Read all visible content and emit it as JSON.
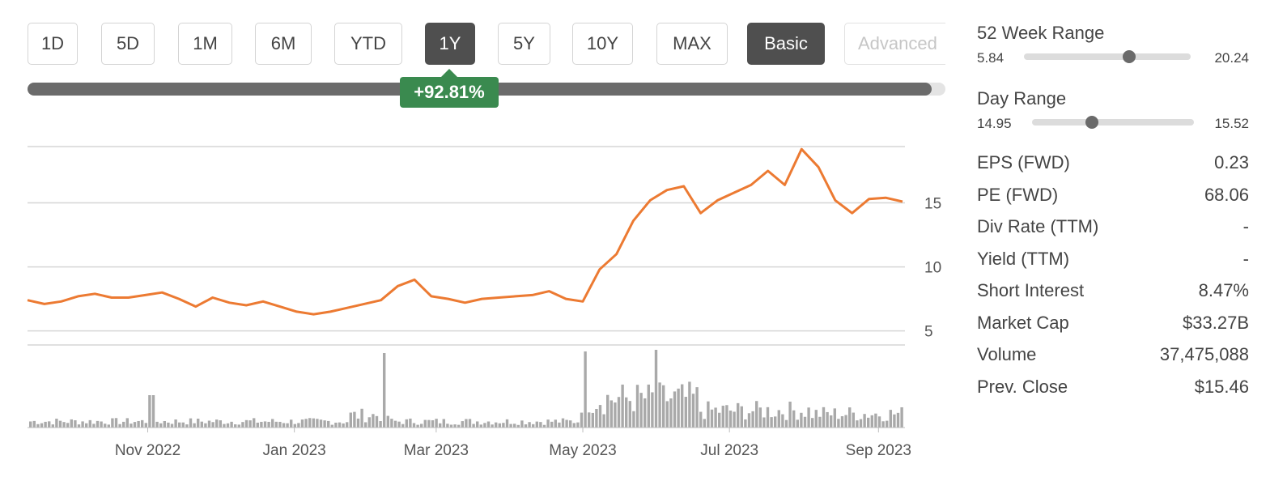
{
  "periods": [
    {
      "label": "1D",
      "state": "normal"
    },
    {
      "label": "5D",
      "state": "normal"
    },
    {
      "label": "1M",
      "state": "normal"
    },
    {
      "label": "6M",
      "state": "normal"
    },
    {
      "label": "YTD",
      "state": "normal"
    },
    {
      "label": "1Y",
      "state": "active"
    },
    {
      "label": "5Y",
      "state": "normal"
    },
    {
      "label": "10Y",
      "state": "normal"
    },
    {
      "label": "MAX",
      "state": "normal"
    },
    {
      "label": "Basic",
      "state": "active"
    },
    {
      "label": "Advanced",
      "state": "disabled"
    }
  ],
  "period_progress": 0.985,
  "change_badge": "+92.81%",
  "stats": {
    "week52": {
      "title": "52 Week Range",
      "low": "5.84",
      "high": "20.24",
      "position": 0.63
    },
    "day": {
      "title": "Day Range",
      "low": "14.95",
      "high": "15.52",
      "position": 0.37
    },
    "rows": [
      {
        "label": "EPS (FWD)",
        "value": "0.23"
      },
      {
        "label": "PE (FWD)",
        "value": "68.06"
      },
      {
        "label": "Div Rate (TTM)",
        "value": "-"
      },
      {
        "label": "Yield (TTM)",
        "value": "-"
      },
      {
        "label": "Short Interest",
        "value": "8.47%"
      },
      {
        "label": "Market Cap",
        "value": "$33.27B"
      },
      {
        "label": "Volume",
        "value": "37,475,088"
      },
      {
        "label": "Prev. Close",
        "value": "$15.46"
      }
    ]
  },
  "colors": {
    "line": "#ec7a32",
    "volume": "#a9a9a9",
    "grid": "#d6d6d6",
    "badge": "#3a8a4f"
  },
  "chart_data": {
    "type": "line",
    "x_ticks": [
      "Nov 2022",
      "Jan 2023",
      "Mar 2023",
      "May 2023",
      "Jul 2023",
      "Sep 2023"
    ],
    "y_ticks": [
      5,
      10,
      15
    ],
    "ylim": [
      3.9,
      19.4
    ],
    "x_range": [
      "2022-09-12",
      "2023-09-12"
    ],
    "series": [
      {
        "values": [
          [
            "2022-09-12",
            7.4
          ],
          [
            "2022-09-19",
            7.1
          ],
          [
            "2022-09-26",
            7.3
          ],
          [
            "2022-10-03",
            7.7
          ],
          [
            "2022-10-10",
            7.9
          ],
          [
            "2022-10-17",
            7.6
          ],
          [
            "2022-10-24",
            7.6
          ],
          [
            "2022-10-31",
            7.8
          ],
          [
            "2022-11-07",
            8.0
          ],
          [
            "2022-11-14",
            7.5
          ],
          [
            "2022-11-21",
            6.9
          ],
          [
            "2022-11-28",
            7.6
          ],
          [
            "2022-12-05",
            7.2
          ],
          [
            "2022-12-12",
            7.0
          ],
          [
            "2022-12-19",
            7.3
          ],
          [
            "2022-12-26",
            6.9
          ],
          [
            "2023-01-02",
            6.5
          ],
          [
            "2023-01-09",
            6.3
          ],
          [
            "2023-01-16",
            6.5
          ],
          [
            "2023-01-23",
            6.8
          ],
          [
            "2023-01-30",
            7.1
          ],
          [
            "2023-02-06",
            7.4
          ],
          [
            "2023-02-13",
            8.5
          ],
          [
            "2023-02-20",
            9.0
          ],
          [
            "2023-02-27",
            7.7
          ],
          [
            "2023-03-06",
            7.5
          ],
          [
            "2023-03-13",
            7.2
          ],
          [
            "2023-03-20",
            7.5
          ],
          [
            "2023-03-27",
            7.6
          ],
          [
            "2023-04-03",
            7.7
          ],
          [
            "2023-04-10",
            7.8
          ],
          [
            "2023-04-17",
            8.1
          ],
          [
            "2023-04-24",
            7.5
          ],
          [
            "2023-05-01",
            7.3
          ],
          [
            "2023-05-08",
            9.8
          ],
          [
            "2023-05-15",
            11.0
          ],
          [
            "2023-05-22",
            13.6
          ],
          [
            "2023-05-29",
            15.2
          ],
          [
            "2023-06-05",
            16.0
          ],
          [
            "2023-06-12",
            16.3
          ],
          [
            "2023-06-19",
            14.2
          ],
          [
            "2023-06-26",
            15.2
          ],
          [
            "2023-07-03",
            15.8
          ],
          [
            "2023-07-10",
            16.4
          ],
          [
            "2023-07-17",
            17.5
          ],
          [
            "2023-07-24",
            16.4
          ],
          [
            "2023-07-31",
            19.2
          ],
          [
            "2023-08-07",
            17.8
          ],
          [
            "2023-08-14",
            15.2
          ],
          [
            "2023-08-21",
            14.2
          ],
          [
            "2023-08-28",
            15.3
          ],
          [
            "2023-09-04",
            15.4
          ],
          [
            "2023-09-11",
            15.1
          ]
        ]
      }
    ]
  }
}
